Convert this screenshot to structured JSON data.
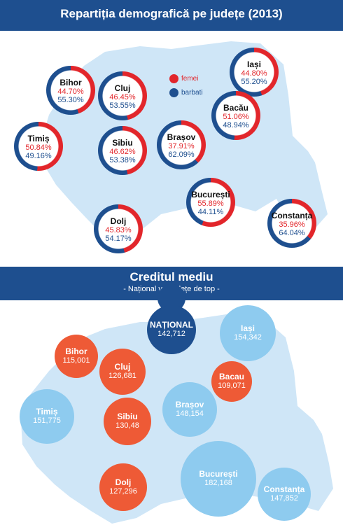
{
  "header": {
    "title": "Repartiția demografică pe județe (2013)"
  },
  "legend": {
    "female": "femei",
    "male": "barbati"
  },
  "colors": {
    "female": "#e2262b",
    "male": "#1e4f8f",
    "map": "#cfe6f7",
    "national": "#1e4f8f",
    "top": "#ee5a36",
    "other": "#8ecbef"
  },
  "counties": [
    {
      "name": "Bihor",
      "femei": "44.70%",
      "barbati": "55.30%",
      "female_share": 44.7
    },
    {
      "name": "Cluj",
      "femei": "46.45%",
      "barbati": "53.55%",
      "female_share": 46.45
    },
    {
      "name": "Iași",
      "femei": "44.80%",
      "barbati": "55.20%",
      "female_share": 44.8
    },
    {
      "name": "Bacău",
      "femei": "51.06%",
      "barbati": "48.94%",
      "female_share": 51.06
    },
    {
      "name": "Timiș",
      "femei": "50.84%",
      "barbati": "49.16%",
      "female_share": 50.84
    },
    {
      "name": "Sibiu",
      "femei": "46.62%",
      "barbati": "53.38%",
      "female_share": 46.62
    },
    {
      "name": "Brașov",
      "femei": "37.91%",
      "barbati": "62.09%",
      "female_share": 37.91
    },
    {
      "name": "București",
      "femei": "55.89%",
      "barbati": "44.11%",
      "female_share": 55.89
    },
    {
      "name": "Dolj",
      "femei": "45.83%",
      "barbati": "54.17%",
      "female_share": 45.83
    },
    {
      "name": "Constanța",
      "femei": "35.96%",
      "barbati": "64.04%",
      "female_share": 35.96
    }
  ],
  "credit": {
    "title": "Creditul mediu",
    "subtitle": "- Național vs Județe de top -",
    "items": [
      {
        "name": "NAȚIONAL",
        "value": "142,712",
        "kind": "national"
      },
      {
        "name": "Iași",
        "value": "154,342",
        "kind": "other"
      },
      {
        "name": "Bihor",
        "value": "115,001",
        "kind": "top"
      },
      {
        "name": "Cluj",
        "value": "126,681",
        "kind": "top"
      },
      {
        "name": "Bacau",
        "value": "109,071",
        "kind": "top"
      },
      {
        "name": "Timiș",
        "value": "151,775",
        "kind": "other"
      },
      {
        "name": "Sibiu",
        "value": "130,48",
        "kind": "top"
      },
      {
        "name": "Brașov",
        "value": "148,154",
        "kind": "other"
      },
      {
        "name": "Dolj",
        "value": "127,296",
        "kind": "top"
      },
      {
        "name": "București",
        "value": "182,168",
        "kind": "other"
      },
      {
        "name": "Constanța",
        "value": "147,852",
        "kind": "other"
      }
    ]
  }
}
